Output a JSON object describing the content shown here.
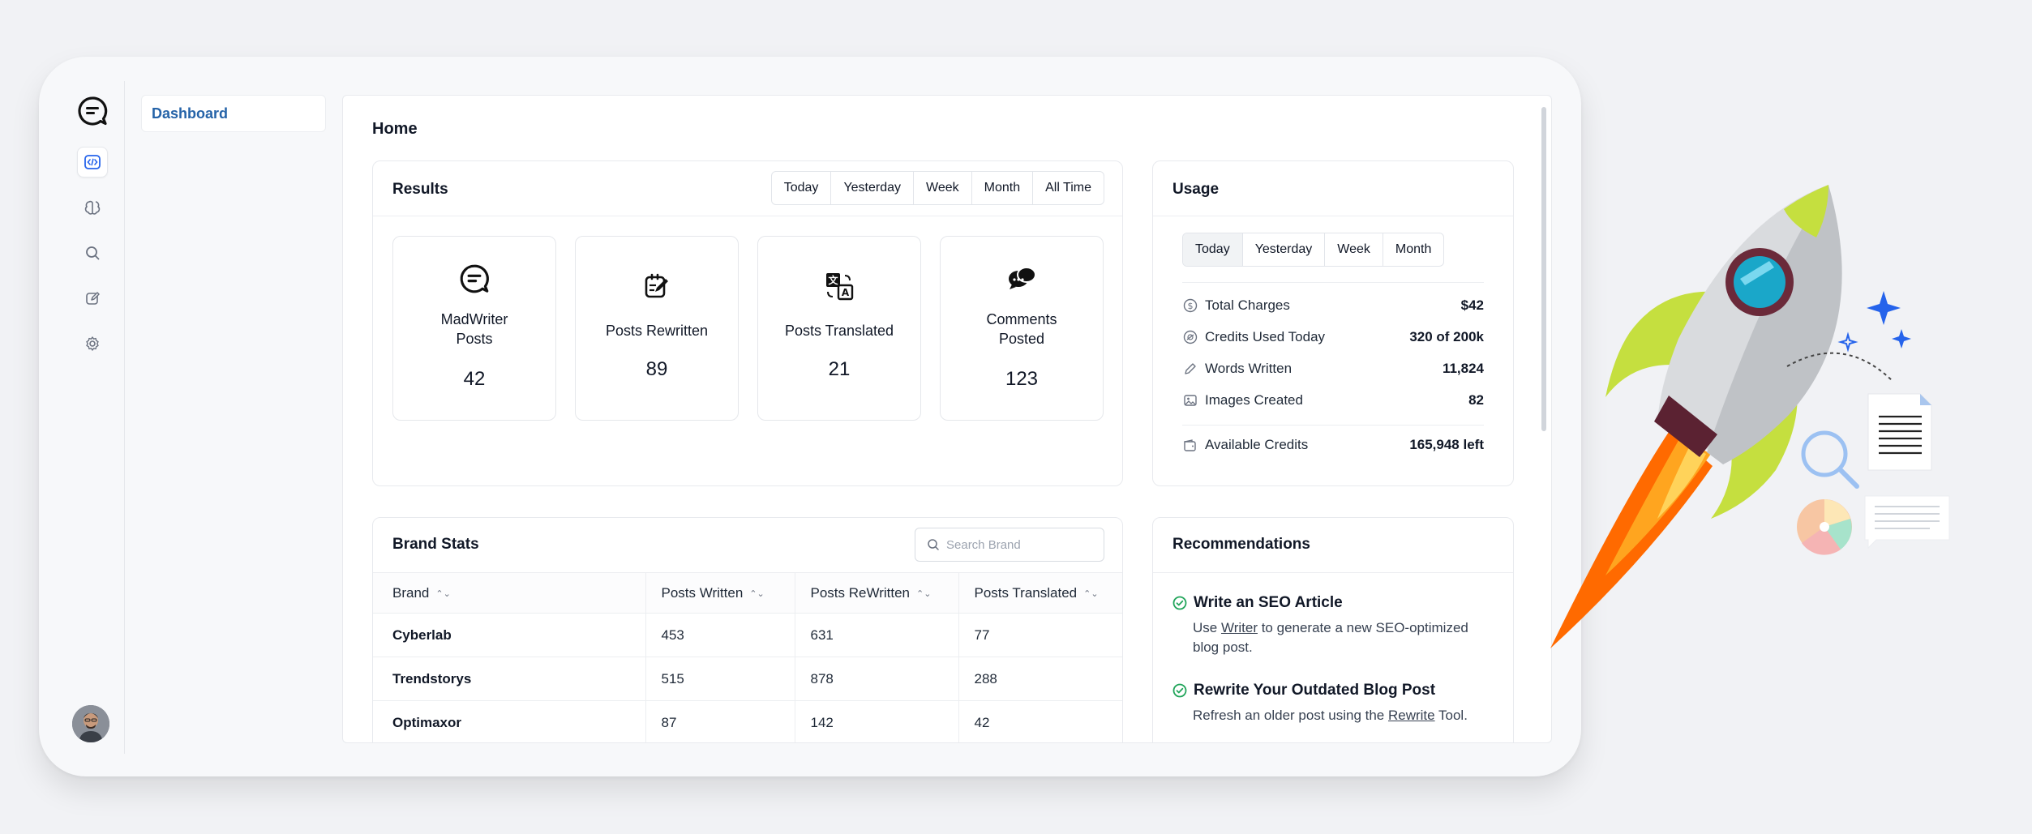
{
  "sidebar": {
    "nav": [
      "chat-logo",
      "dashboard",
      "brain",
      "search",
      "edit",
      "settings"
    ]
  },
  "subnav": {
    "active_item": "Dashboard"
  },
  "page": {
    "title": "Home"
  },
  "results": {
    "title": "Results",
    "ranges": [
      "Today",
      "Yesterday",
      "Week",
      "Month",
      "All Time"
    ],
    "stats": [
      {
        "label_line1": "MadWriter",
        "label_line2": "Posts",
        "value": "42",
        "icon": "chat-icon"
      },
      {
        "label_line1": "Posts Rewritten",
        "label_line2": "",
        "value": "89",
        "icon": "rewrite-icon"
      },
      {
        "label_line1": "Posts Translated",
        "label_line2": "",
        "value": "21",
        "icon": "translate-icon"
      },
      {
        "label_line1": "Comments",
        "label_line2": "Posted",
        "value": "123",
        "icon": "comments-icon"
      }
    ]
  },
  "usage": {
    "title": "Usage",
    "ranges": [
      "Today",
      "Yesterday",
      "Week",
      "Month"
    ],
    "selected_range": "Today",
    "rows": [
      {
        "label": "Total Charges",
        "value": "$42",
        "icon": "dollar-icon"
      },
      {
        "label": "Credits Used Today",
        "value": "320 of 200k",
        "icon": "credits-icon"
      },
      {
        "label": "Words Written",
        "value": "11,824",
        "icon": "pencil-icon"
      },
      {
        "label": "Images Created",
        "value": "82",
        "icon": "image-icon"
      }
    ],
    "available": {
      "label": "Available Credits",
      "value": "165,948 left",
      "icon": "wallet-icon"
    }
  },
  "brand_stats": {
    "title": "Brand Stats",
    "search_placeholder": "Search Brand",
    "columns": [
      "Brand",
      "Posts Written",
      "Posts ReWritten",
      "Posts Translated"
    ],
    "rows": [
      [
        "Cyberlab",
        "453",
        "631",
        "77"
      ],
      [
        "Trendstorys",
        "515",
        "878",
        "288"
      ],
      [
        "Optimaxor",
        "87",
        "142",
        "42"
      ]
    ]
  },
  "recommendations": {
    "title": "Recommendations",
    "items": [
      {
        "title": "Write an SEO Article",
        "pre": "Use ",
        "link": "Writer",
        "post": " to generate a new SEO-optimized blog post."
      },
      {
        "title": "Rewrite Your Outdated Blog Post",
        "pre": "Refresh an older post using the ",
        "link": "Rewrite",
        "post": " Tool."
      }
    ]
  }
}
